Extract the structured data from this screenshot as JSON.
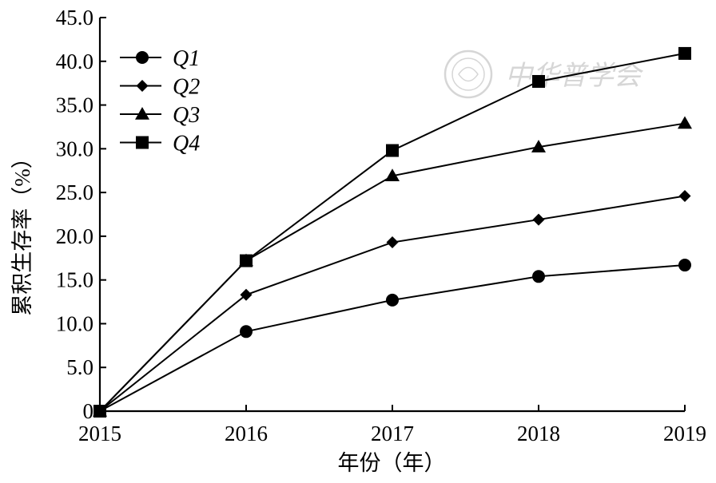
{
  "chart_data": {
    "type": "line",
    "title": "",
    "xlabel": "年份（年）",
    "ylabel": "累积生存率（%）",
    "x": [
      "2015",
      "2016",
      "2017",
      "2018",
      "2019"
    ],
    "ylim": [
      0,
      45
    ],
    "yticks": [
      "0",
      "5.0",
      "10.0",
      "15.0",
      "20.0",
      "25.0",
      "30.0",
      "35.0",
      "40.0",
      "45.0"
    ],
    "series": [
      {
        "name": "Q1",
        "marker": "circle",
        "values": [
          0,
          9.1,
          12.7,
          15.4,
          16.7
        ]
      },
      {
        "name": "Q2",
        "marker": "diamond",
        "values": [
          0,
          13.3,
          19.3,
          21.9,
          24.6
        ]
      },
      {
        "name": "Q3",
        "marker": "triangle",
        "values": [
          0,
          17.2,
          26.9,
          30.2,
          32.9
        ]
      },
      {
        "name": "Q4",
        "marker": "square",
        "values": [
          0,
          17.2,
          29.8,
          37.7,
          40.9
        ]
      }
    ],
    "legend": "top-left",
    "grid": false,
    "color": "#000000"
  },
  "watermark": {
    "text": "中华普学会",
    "color": "#d6d6d6"
  }
}
